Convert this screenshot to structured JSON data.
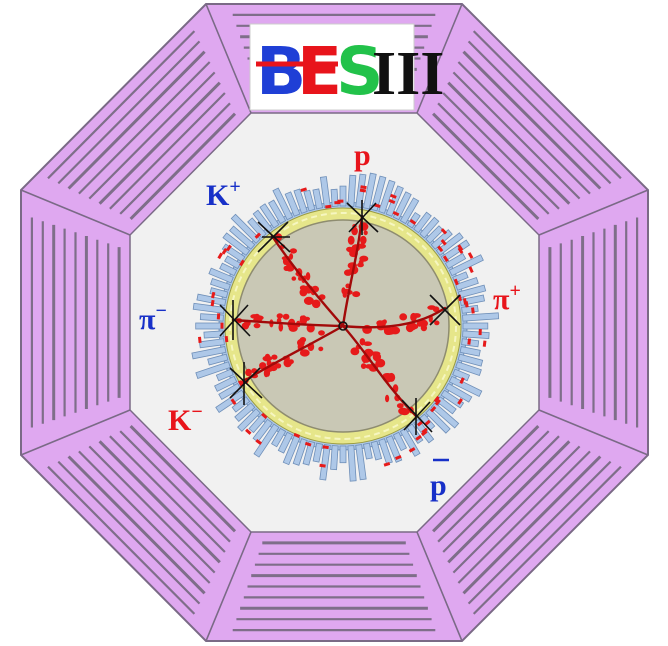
{
  "logo": {
    "letters": [
      {
        "text": "B",
        "color": "#1f3fd6"
      },
      {
        "text": "E",
        "color": "#e8141b"
      },
      {
        "text": "S",
        "color": "#22c24a"
      }
    ],
    "numeral": "III",
    "bar_color": "#e8141b"
  },
  "labels": {
    "p": "p",
    "k_plus_base": "K",
    "k_plus_sup": "+",
    "pi_minus_base": "π",
    "pi_minus_sup": "−",
    "pi_plus_base": "π",
    "pi_plus_sup": "+",
    "k_minus_base": "K",
    "k_minus_sup": "−",
    "p_bar": "p"
  },
  "colors": {
    "outer_octagon": "#dfa8f0",
    "outer_stroke": "#7a6a86",
    "inner_field": "#f1f1f1",
    "barrel": "#aec8e8",
    "yellow_ring": "#e6e68a",
    "core": "#c9c8b5",
    "track": "#a20a0a",
    "hits": "#e61a1a",
    "label_blue": "#1730c8",
    "label_red": "#e8141b"
  }
}
